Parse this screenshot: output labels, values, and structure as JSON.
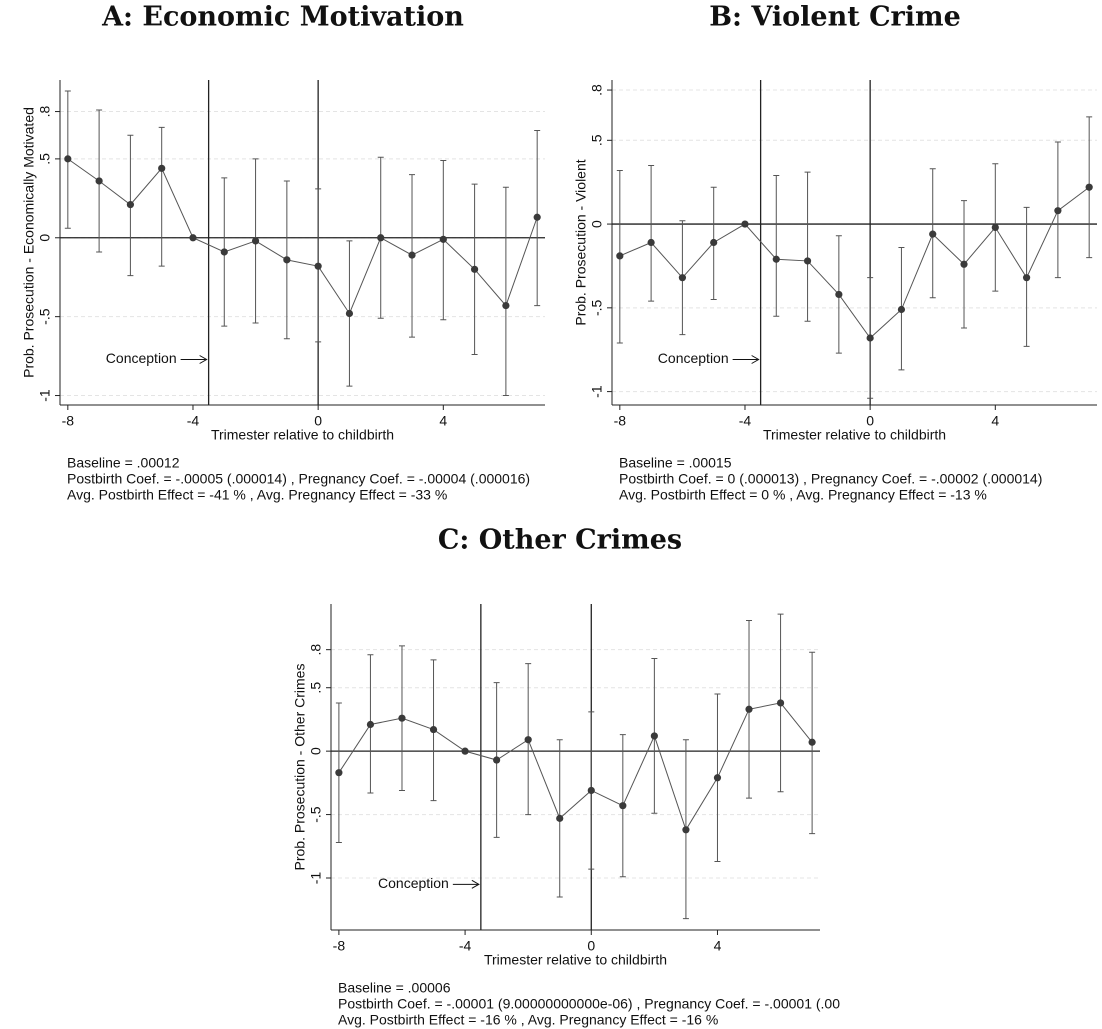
{
  "chart_data": [
    {
      "type": "errorbar",
      "title": "A: Economic Motivation",
      "x_label": "Trimester relative to childbirth",
      "y_label": "Prob. Prosecution - Economically Motivated",
      "x": [
        -8,
        -7,
        -6,
        -5,
        -4,
        -3,
        -2,
        -1,
        0,
        1,
        2,
        3,
        4,
        5,
        6,
        7
      ],
      "values": [
        0.5,
        0.36,
        0.21,
        0.44,
        0,
        -0.09,
        -0.02,
        -0.14,
        -0.18,
        -0.48,
        0.0,
        -0.11,
        -0.01,
        -0.2,
        -0.43,
        0.13
      ],
      "ci_low": [
        0.06,
        -0.09,
        -0.24,
        -0.18,
        0,
        -0.56,
        -0.54,
        -0.64,
        -0.66,
        -0.94,
        -0.51,
        -0.63,
        -0.52,
        -0.74,
        -1.0,
        -0.43
      ],
      "ci_high": [
        0.93,
        0.81,
        0.65,
        0.7,
        0,
        0.38,
        0.5,
        0.36,
        0.31,
        -0.02,
        0.51,
        0.4,
        0.49,
        0.34,
        0.32,
        0.68
      ],
      "color": "#3a3a3a",
      "xlim": [
        -8.25,
        7.25
      ],
      "ylim": [
        -1.06,
        1.0
      ],
      "xticks": [
        -8,
        -4,
        0,
        4
      ],
      "yticks": [
        {
          "value": 0.8,
          "label": ".8"
        },
        {
          "value": 0.5,
          "label": ".5"
        },
        0,
        {
          "value": -0.5,
          "label": "-.5"
        },
        -1
      ],
      "grid": true,
      "vlines": [
        -3.5,
        0
      ],
      "annotation": "Conception",
      "notes": [
        "Baseline = .00012",
        "Postbirth Coef. = -.00005 (.000014) , Pregnancy Coef. = -.00004 (.000016)",
        "Avg. Postbirth Effect = -41 % , Avg. Pregnancy Effect = -33 %"
      ]
    },
    {
      "type": "errorbar",
      "title": "B: Violent Crime",
      "x_label": "Trimester relative to childbirth",
      "y_label": "Prob. Prosecution - Violent",
      "x": [
        -8,
        -7,
        -6,
        -5,
        -4,
        -3,
        -2,
        -1,
        0,
        1,
        2,
        3,
        4,
        5,
        6,
        7
      ],
      "values": [
        -0.19,
        -0.11,
        -0.32,
        -0.11,
        0,
        -0.21,
        -0.22,
        -0.42,
        -0.68,
        -0.51,
        -0.06,
        -0.24,
        -0.02,
        -0.32,
        0.08,
        0.22
      ],
      "ci_low": [
        -0.71,
        -0.46,
        -0.66,
        -0.45,
        0,
        -0.55,
        -0.58,
        -0.77,
        -1.04,
        -0.87,
        -0.44,
        -0.62,
        -0.4,
        -0.73,
        -0.32,
        -0.2
      ],
      "ci_high": [
        0.32,
        0.35,
        0.02,
        0.22,
        0,
        0.29,
        0.31,
        -0.07,
        -0.32,
        -0.14,
        0.33,
        0.14,
        0.36,
        0.1,
        0.49,
        0.64
      ],
      "color": "#3a3a3a",
      "xlim": [
        -8.25,
        7.25
      ],
      "ylim": [
        -1.08,
        0.86
      ],
      "xticks": [
        -8,
        -4,
        0,
        4
      ],
      "yticks": [
        {
          "value": 0.8,
          "label": ".8"
        },
        {
          "value": 0.5,
          "label": ".5"
        },
        0,
        {
          "value": -0.5,
          "label": "-.5"
        },
        -1
      ],
      "grid": true,
      "vlines": [
        -3.5,
        0
      ],
      "annotation": "Conception",
      "notes": [
        "Baseline = .00015",
        "Postbirth Coef. = 0 (.000013) , Pregnancy Coef. = -.00002 (.000014)",
        "Avg. Postbirth Effect = 0 % , Avg. Pregnancy Effect = -13 %"
      ]
    },
    {
      "type": "errorbar",
      "title": "C: Other Crimes",
      "x_label": "Trimester relative to childbirth",
      "y_label": "Prob. Prosecution - Other Crimes",
      "x": [
        -8,
        -7,
        -6,
        -5,
        -4,
        -3,
        -2,
        -1,
        0,
        1,
        2,
        3,
        4,
        5,
        6,
        7
      ],
      "values": [
        -0.17,
        0.21,
        0.26,
        0.17,
        0,
        -0.07,
        0.09,
        -0.53,
        -0.31,
        -0.43,
        0.12,
        -0.62,
        -0.21,
        0.33,
        0.38,
        0.07
      ],
      "ci_low": [
        -0.72,
        -0.33,
        -0.31,
        -0.39,
        0,
        -0.68,
        -0.5,
        -1.15,
        -0.93,
        -0.99,
        -0.49,
        -1.32,
        -0.87,
        -0.37,
        -0.32,
        -0.65
      ],
      "ci_high": [
        0.38,
        0.76,
        0.83,
        0.72,
        0,
        0.54,
        0.69,
        0.09,
        0.31,
        0.13,
        0.73,
        0.09,
        0.45,
        1.03,
        1.08,
        0.78
      ],
      "color": "#3a3a3a",
      "xlim": [
        -8.25,
        7.25
      ],
      "ylim": [
        -1.41,
        1.16
      ],
      "xticks": [
        -8,
        -4,
        0,
        4
      ],
      "yticks": [
        {
          "value": 0.8,
          "label": ".8"
        },
        {
          "value": 0.5,
          "label": ".5"
        },
        0,
        {
          "value": -0.5,
          "label": "-.5"
        },
        -1
      ],
      "grid": true,
      "vlines": [
        -3.5,
        0
      ],
      "annotation": "Conception",
      "notes": [
        "Baseline = .00006",
        "Postbirth Coef. = -.00001 (9.00000000000e-06) , Pregnancy Coef. = -.00001 (.00",
        "Avg. Postbirth Effect = -16 % , Avg. Pregnancy Effect = -16 %"
      ]
    }
  ]
}
